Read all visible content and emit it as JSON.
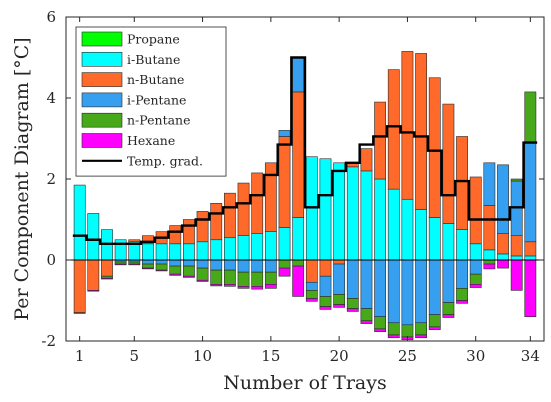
{
  "chart_data": {
    "type": "bar",
    "stacked": true,
    "title": "",
    "xlabel": "Number of Trays",
    "ylabel": "Per Component Diagram [°C]",
    "xlim": [
      0,
      35
    ],
    "ylim": [
      -2,
      6
    ],
    "xticks": [
      1,
      5,
      10,
      15,
      20,
      25,
      30,
      34
    ],
    "yticks": [
      -2,
      0,
      2,
      4,
      6
    ],
    "grid": false,
    "legend_position": "top-left",
    "trays": [
      1,
      2,
      3,
      4,
      5,
      6,
      7,
      8,
      9,
      10,
      11,
      12,
      13,
      14,
      15,
      16,
      17,
      18,
      19,
      20,
      21,
      22,
      23,
      24,
      25,
      26,
      27,
      28,
      29,
      30,
      31,
      32,
      33,
      34
    ],
    "series": [
      {
        "name": "Propane",
        "color": "#00ff00",
        "values": [
          0,
          0,
          0,
          0,
          0,
          0,
          0,
          0,
          0,
          0,
          0,
          0,
          0,
          0,
          0,
          0,
          0,
          0,
          0,
          0,
          0,
          0,
          0,
          0,
          0,
          0,
          0,
          0,
          0,
          0,
          0,
          0,
          0,
          0
        ]
      },
      {
        "name": "i-Butane",
        "color": "#00ffff",
        "values": [
          1.85,
          1.15,
          0.75,
          0.5,
          0.45,
          0.4,
          0.4,
          0.4,
          0.4,
          0.45,
          0.5,
          0.55,
          0.6,
          0.65,
          0.7,
          0.8,
          1.05,
          2.55,
          2.5,
          2.4,
          2.3,
          2.2,
          2.0,
          1.75,
          1.5,
          1.25,
          1.05,
          0.9,
          0.75,
          0.4,
          0.25,
          0.15,
          0.1,
          0.1
        ]
      },
      {
        "name": "n-Butane",
        "color": "#ff6929",
        "values": [
          -1.3,
          -0.75,
          -0.4,
          0.0,
          0.05,
          0.2,
          0.3,
          0.45,
          0.6,
          0.75,
          0.9,
          1.1,
          1.3,
          1.5,
          1.7,
          2.25,
          3.1,
          -0.55,
          -0.4,
          -0.1,
          0.1,
          0.55,
          1.9,
          2.95,
          3.65,
          3.85,
          3.45,
          2.95,
          2.3,
          1.65,
          1.1,
          0.5,
          0.5,
          0.35
        ]
      },
      {
        "name": "i-Pentane",
        "color": "#379ff0",
        "values": [
          0.0,
          0.0,
          0.0,
          -0.05,
          -0.05,
          -0.1,
          -0.1,
          -0.15,
          -0.15,
          -0.2,
          -0.25,
          -0.25,
          -0.3,
          -0.3,
          -0.3,
          0.15,
          0.85,
          -0.2,
          -0.5,
          -0.75,
          -0.95,
          -1.2,
          -1.4,
          -1.55,
          -1.6,
          -1.55,
          -1.35,
          -1.05,
          -0.7,
          -0.35,
          1.05,
          1.7,
          1.35,
          2.45
        ]
      },
      {
        "name": "n-Pentane",
        "color": "#47a91a",
        "values": [
          0.0,
          0.0,
          -0.05,
          -0.05,
          -0.05,
          -0.1,
          -0.15,
          -0.2,
          -0.25,
          -0.3,
          -0.35,
          -0.35,
          -0.35,
          -0.35,
          -0.3,
          -0.2,
          -0.15,
          -0.2,
          -0.25,
          -0.25,
          -0.25,
          -0.3,
          -0.3,
          -0.3,
          -0.3,
          -0.3,
          -0.3,
          -0.3,
          -0.3,
          -0.25,
          -0.1,
          0.0,
          0.05,
          1.25
        ]
      },
      {
        "name": "Hexane",
        "color": "#ff00ff",
        "values": [
          -0.02,
          -0.02,
          -0.02,
          -0.02,
          -0.02,
          -0.02,
          -0.02,
          -0.03,
          -0.03,
          -0.03,
          -0.04,
          -0.05,
          -0.05,
          -0.07,
          -0.1,
          -0.2,
          -0.75,
          -0.07,
          -0.07,
          -0.07,
          -0.07,
          -0.07,
          -0.07,
          -0.07,
          -0.07,
          -0.07,
          -0.07,
          -0.07,
          -0.07,
          -0.08,
          -0.12,
          -0.2,
          -0.75,
          -1.4
        ]
      }
    ],
    "temp_grad": {
      "name": "Temp. grad.",
      "color": "#000000",
      "values": [
        0.6,
        0.5,
        0.4,
        0.4,
        0.4,
        0.45,
        0.55,
        0.7,
        0.85,
        1.0,
        1.15,
        1.3,
        1.4,
        1.6,
        2.1,
        2.85,
        5.0,
        1.3,
        1.6,
        2.2,
        2.4,
        2.85,
        3.05,
        3.3,
        3.15,
        3.05,
        2.7,
        1.6,
        1.95,
        1.0,
        1.0,
        1.0,
        1.3,
        2.9
      ]
    }
  }
}
